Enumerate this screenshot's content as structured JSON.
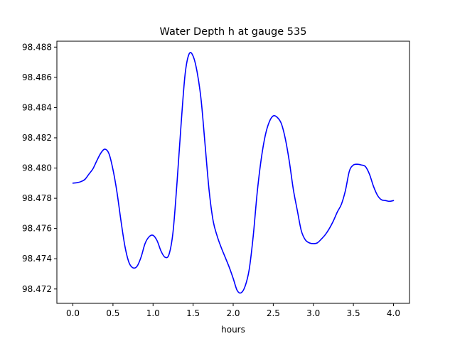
{
  "chart_data": {
    "type": "line",
    "title": "Water Depth h at gauge 535",
    "xlabel": "hours",
    "ylabel": "",
    "xlim": [
      -0.2,
      4.2
    ],
    "ylim": [
      98.47105,
      98.48839
    ],
    "grid": false,
    "x_ticks": [
      0.0,
      0.5,
      1.0,
      1.5,
      2.0,
      2.5,
      3.0,
      3.5,
      4.0
    ],
    "x_tick_labels": [
      "0.0",
      "0.5",
      "1.0",
      "1.5",
      "2.0",
      "2.5",
      "3.0",
      "3.5",
      "4.0"
    ],
    "y_ticks": [
      98.472,
      98.474,
      98.476,
      98.478,
      98.48,
      98.482,
      98.484,
      98.486,
      98.488
    ],
    "y_tick_labels": [
      "98.472",
      "98.474",
      "98.476",
      "98.478",
      "98.480",
      "98.482",
      "98.484",
      "98.486",
      "98.488"
    ],
    "series": [
      {
        "color": "#0000ff",
        "x": [
          0.0,
          0.05,
          0.1,
          0.15,
          0.2,
          0.25,
          0.3,
          0.35,
          0.4,
          0.45,
          0.5,
          0.55,
          0.6,
          0.65,
          0.7,
          0.75,
          0.8,
          0.85,
          0.9,
          0.95,
          1.0,
          1.05,
          1.1,
          1.15,
          1.2,
          1.25,
          1.3,
          1.35,
          1.4,
          1.45,
          1.5,
          1.55,
          1.6,
          1.65,
          1.7,
          1.75,
          1.8,
          1.85,
          1.9,
          1.95,
          2.0,
          2.05,
          2.1,
          2.15,
          2.2,
          2.25,
          2.3,
          2.35,
          2.4,
          2.45,
          2.5,
          2.55,
          2.6,
          2.65,
          2.7,
          2.75,
          2.8,
          2.85,
          2.9,
          2.95,
          3.0,
          3.05,
          3.1,
          3.15,
          3.2,
          3.25,
          3.3,
          3.35,
          3.4,
          3.45,
          3.5,
          3.55,
          3.6,
          3.65,
          3.7,
          3.75,
          3.8,
          3.85,
          3.9,
          3.95,
          4.0
        ],
        "y": [
          98.479,
          98.47903,
          98.4791,
          98.47925,
          98.4796,
          98.47995,
          98.4805,
          98.481,
          98.48125,
          98.48095,
          98.4799,
          98.4784,
          98.4765,
          98.4748,
          98.47375,
          98.4734,
          98.4735,
          98.4741,
          98.475,
          98.47545,
          98.47555,
          98.4752,
          98.4745,
          98.4741,
          98.4743,
          98.4758,
          98.4791,
          98.4829,
          98.4862,
          98.48755,
          98.4874,
          98.48635,
          98.4845,
          98.4815,
          98.4785,
          98.4765,
          98.4755,
          98.47475,
          98.4741,
          98.47345,
          98.4727,
          98.4719,
          98.47175,
          98.4722,
          98.4733,
          98.4755,
          98.4784,
          98.4806,
          98.48215,
          98.48305,
          98.48345,
          98.48335,
          98.48295,
          98.48195,
          98.48045,
          98.4786,
          98.4772,
          98.47585,
          98.47525,
          98.47505,
          98.475,
          98.47505,
          98.4753,
          98.4756,
          98.476,
          98.4765,
          98.4771,
          98.4776,
          98.4785,
          98.4798,
          98.4802,
          98.48025,
          98.4802,
          98.4801,
          98.4796,
          98.4788,
          98.4782,
          98.4779,
          98.47785,
          98.4778,
          98.47785
        ]
      }
    ]
  }
}
